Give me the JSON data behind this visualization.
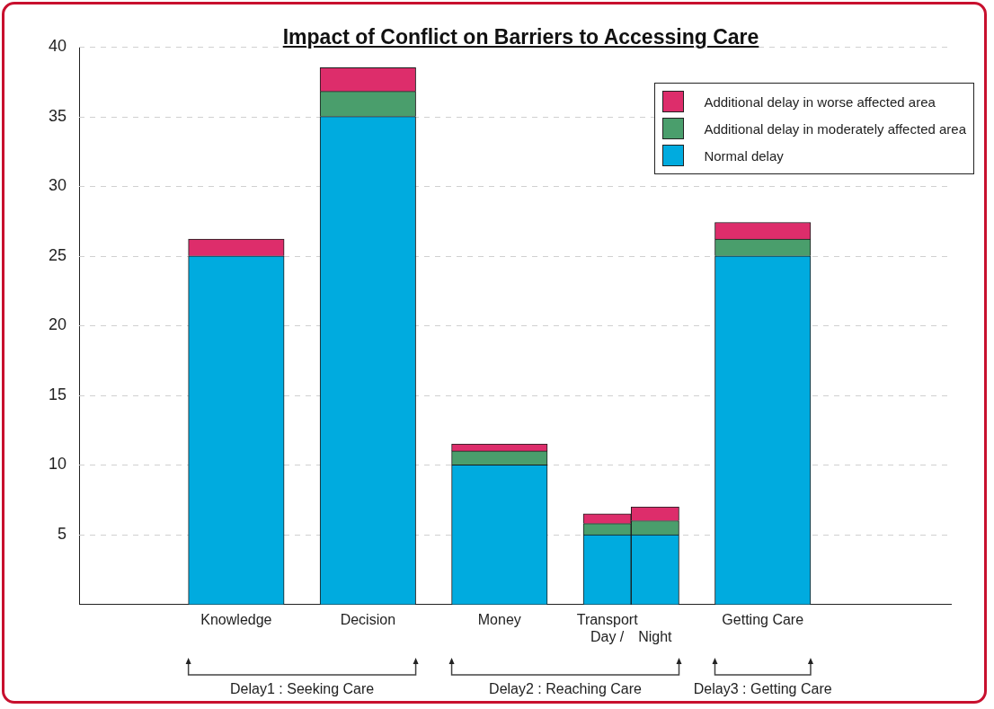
{
  "chart_data": {
    "type": "bar",
    "stacked": true,
    "title": "Impact of Conflict on Barriers to Accessing Care",
    "categories": [
      "Knowledge",
      "Decision",
      "Money",
      "Transport Day /",
      "Night",
      "Getting Care"
    ],
    "series": [
      {
        "name": "Normal delay",
        "color": "#00abdf",
        "values": [
          25,
          35,
          10,
          5,
          5,
          25
        ]
      },
      {
        "name": "Additional delay in moderately affected area",
        "color": "#4a9e6c",
        "values": [
          null,
          1.8,
          1.0,
          0.8,
          1.0,
          1.2
        ]
      },
      {
        "name": "Additional delay in worse affected area",
        "color": "#dd2d6b",
        "values": [
          1.2,
          1.7,
          0.5,
          0.7,
          1.0,
          1.2
        ]
      }
    ],
    "ylim": [
      0,
      40
    ],
    "yticks": [
      {
        "value": 0,
        "label": null
      },
      5,
      10,
      15,
      20,
      25,
      30,
      35,
      40
    ],
    "grid": "y",
    "legend": "top right",
    "annotations": [
      "Delay1 : Seeking Care",
      "Delay2 : Reaching Care",
      "Delay3 : Getting Care"
    ]
  }
}
